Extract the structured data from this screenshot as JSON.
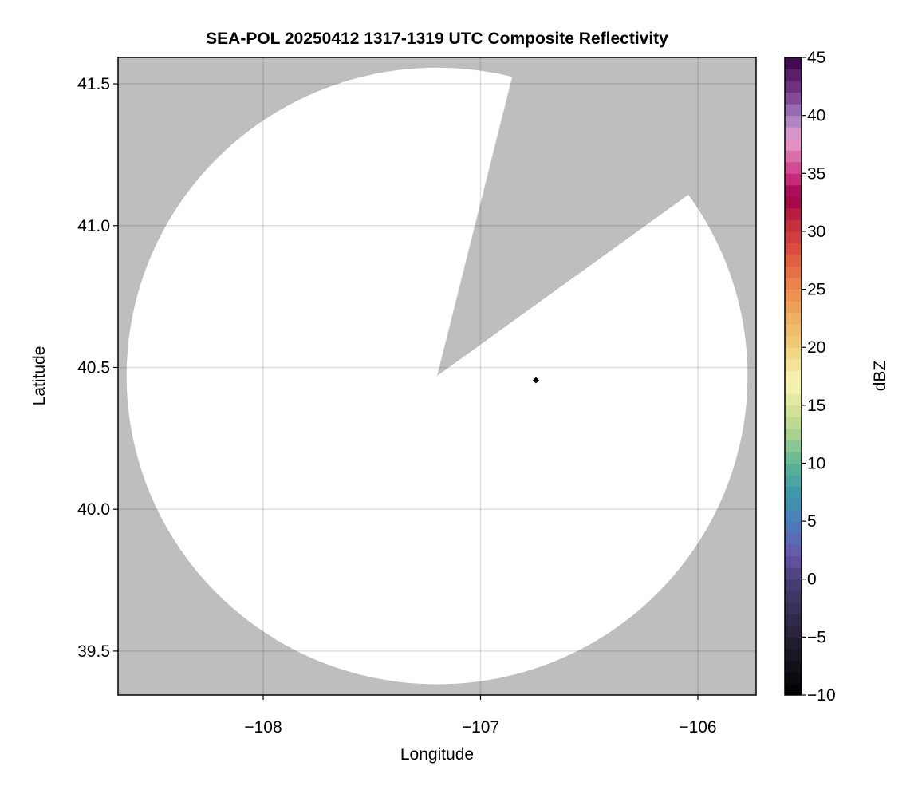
{
  "chart_data": {
    "type": "heatmap",
    "title": "SEA-POL 20250412 1317-1319 UTC Composite Reflectivity",
    "xlabel": "Longitude",
    "ylabel": "Latitude",
    "xlim": [
      -108.668,
      -105.732
    ],
    "ylim": [
      39.345,
      41.593
    ],
    "xticks": [
      -108,
      -107,
      -106
    ],
    "xtick_labels": [
      "−108",
      "−107",
      "−106"
    ],
    "yticks": [
      39.5,
      40.0,
      40.5,
      41.0,
      41.5
    ],
    "ytick_labels": [
      "39.5",
      "40.0",
      "40.5",
      "41.0",
      "41.5"
    ],
    "grid": true,
    "background_color": "#bebebe",
    "coverage_color": "#ffffff",
    "radar_coverage": {
      "center": [
        -107.2,
        40.47
      ],
      "range_km": 121,
      "blocked_azimuth_deg": [
        14,
        54
      ]
    },
    "marker": {
      "lon": -106.745,
      "lat": 40.455,
      "shape": "diamond",
      "color": "#000000"
    },
    "reflectivity_values": [],
    "colorbar": {
      "label": "dBZ",
      "range": [
        -10,
        45
      ],
      "step": 1,
      "ticks": [
        -10,
        -5,
        0,
        5,
        10,
        15,
        20,
        25,
        30,
        35,
        40,
        45
      ],
      "tick_labels": [
        "−10",
        "−5",
        "0",
        "5",
        "10",
        "15",
        "20",
        "25",
        "30",
        "35",
        "40",
        "45"
      ],
      "color_anchors": [
        [
          -10,
          "#000000"
        ],
        [
          -5,
          "#262033"
        ],
        [
          0,
          "#4a3f78"
        ],
        [
          2,
          "#6a55a8"
        ],
        [
          5,
          "#4a7fc0"
        ],
        [
          7.5,
          "#3e9aa8"
        ],
        [
          10,
          "#5eb596"
        ],
        [
          12.5,
          "#a8d28f"
        ],
        [
          15,
          "#dce596"
        ],
        [
          17,
          "#f8f6b6"
        ],
        [
          20,
          "#f0d07a"
        ],
        [
          25,
          "#ec8c4e"
        ],
        [
          28,
          "#e0563f"
        ],
        [
          31,
          "#c0283f"
        ],
        [
          33,
          "#a0004a"
        ],
        [
          35,
          "#d03a8a"
        ],
        [
          38,
          "#e8a0cc"
        ],
        [
          40,
          "#a07cbc"
        ],
        [
          42,
          "#7a3c8c"
        ],
        [
          45,
          "#3c0046"
        ]
      ]
    }
  }
}
